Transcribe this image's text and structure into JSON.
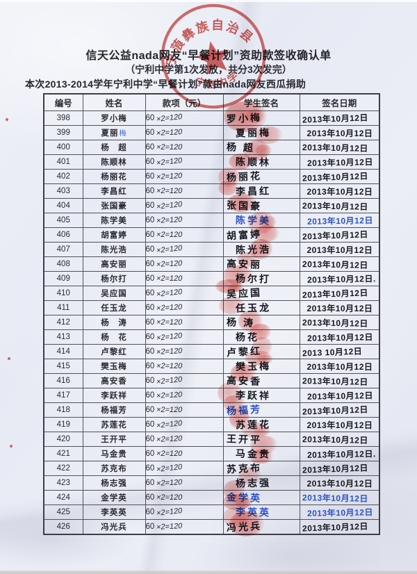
{
  "colors": {
    "seal_red": "#c6281f",
    "blue_ink": "#2a52c8",
    "paper": "#e9ecf5"
  },
  "document": {
    "title": "信天公益nada网友“早餐计划”资助款签收确认单",
    "subtitle": "（宁利中学第1次发放，共分3次发完）",
    "note": "本次2013-2014学年宁利中学“早餐计划”款由nada网友西瓜捐助",
    "stamp": {
      "arc_text": "宁蒗彝族自治县",
      "inner_text": "宁利中学"
    },
    "table": {
      "headers": [
        "编号",
        "姓名",
        "款项（元）",
        "学生签名",
        "签名日期"
      ],
      "amount_printed": "60",
      "amount_written": "×2=120",
      "rows": [
        {
          "no": "398",
          "name": "罗小梅",
          "signature": "罗小梅",
          "date": "2013年10月12日"
        },
        {
          "no": "399",
          "name": "夏丽",
          "name_blue": "梅",
          "signature": "夏丽梅",
          "date": "2013年10月12日"
        },
        {
          "no": "400",
          "name": "杨　超",
          "signature": "杨 超",
          "date": "2013年10月12日"
        },
        {
          "no": "401",
          "name": "陈顺林",
          "signature": "陈顺林",
          "date": "2013年10月12日"
        },
        {
          "no": "402",
          "name": "杨丽花",
          "signature": "杨丽花",
          "date": "2013年10月12日"
        },
        {
          "no": "403",
          "name": "李昌红",
          "signature": "李昌红",
          "date": "2013年10月12日"
        },
        {
          "no": "404",
          "name": "张国豪",
          "signature": "张国豪",
          "date": "2013年10月12日"
        },
        {
          "no": "405",
          "name": "陈学美",
          "signature": "陈学美",
          "date": "2013年10月12日",
          "sig_ink": "blue",
          "date_ink": "blue"
        },
        {
          "no": "406",
          "name": "胡富婷",
          "signature": "胡富婷",
          "date": "2013年10月12日"
        },
        {
          "no": "407",
          "name": "陈光浩",
          "signature": "陈光浩",
          "date": "2013年10月12日"
        },
        {
          "no": "408",
          "name": "高安丽",
          "signature": "高安丽",
          "date": "2013年10月12日"
        },
        {
          "no": "409",
          "name": "杨尔打",
          "signature": "杨尔打",
          "date": "2013年10月12日."
        },
        {
          "no": "410",
          "name": "吴应国",
          "signature": "吴应国",
          "date": "2013年10月12日"
        },
        {
          "no": "411",
          "name": "任玉龙",
          "signature": "任玉龙",
          "date": "2013年10月12日"
        },
        {
          "no": "412",
          "name": "杨　涛",
          "signature": "杨 涛",
          "date": "2013年10月12日"
        },
        {
          "no": "413",
          "name": "杨　花",
          "signature": "杨花",
          "date": "2013年10月12日"
        },
        {
          "no": "414",
          "name": "卢黎红",
          "signature": "卢黎红",
          "date": "2013 10月12日"
        },
        {
          "no": "415",
          "name": "樊玉梅",
          "signature": "樊玉梅",
          "date": "2013年10月12日"
        },
        {
          "no": "416",
          "name": "高安香",
          "signature": "高安香",
          "date": "2013年10月12日"
        },
        {
          "no": "417",
          "name": "李跃祥",
          "signature": "李跃祥",
          "date": "2013年10月12日"
        },
        {
          "no": "418",
          "name": "杨福芳",
          "signature": "杨福芳",
          "date": "2013年10月12日",
          "sig_ink": "blue"
        },
        {
          "no": "419",
          "name": "苏莲花",
          "signature": "苏莲花",
          "date": "2013年10月12日"
        },
        {
          "no": "420",
          "name": "王开平",
          "signature": "王开平",
          "date": "2013年10月12日"
        },
        {
          "no": "421",
          "name": "马金贵",
          "signature": "马金贵",
          "date": "2013年10月12日."
        },
        {
          "no": "422",
          "name": "苏克布",
          "signature": "苏克布",
          "date": "2013年10月12日"
        },
        {
          "no": "423",
          "name": "杨志强",
          "signature": "杨志强",
          "date": "2013年10月12日"
        },
        {
          "no": "424",
          "name": "金学英",
          "signature": "金学英",
          "date": "2013年10月12日",
          "sig_ink": "blue",
          "date_ink": "blue"
        },
        {
          "no": "425",
          "name": "李英英",
          "signature": "李英英",
          "date": "2013年10月12日",
          "sig_ink": "blue",
          "date_ink": "blue"
        },
        {
          "no": "426",
          "name": "冯光兵",
          "signature": "冯光兵",
          "date": "2013年10月12日"
        }
      ]
    }
  }
}
